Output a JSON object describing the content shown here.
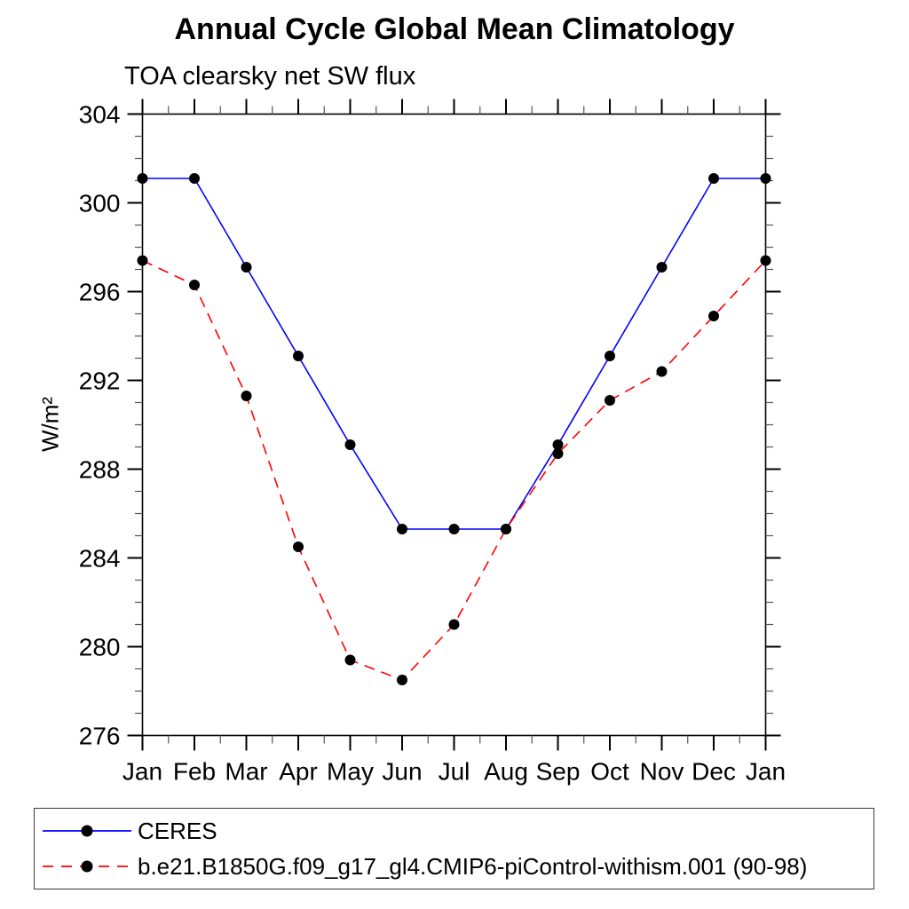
{
  "title": "Annual Cycle Global Mean Climatology",
  "subtitle": "TOA clearsky net SW flux",
  "ylabel": "W/m²",
  "colors": {
    "ceres_line": "#0000ff",
    "model_line": "#ff0000",
    "marker": "#000000",
    "axis": "#000000",
    "minor_tick": "#555555",
    "legend_border": "#3b3b3b"
  },
  "legend": {
    "items": [
      {
        "label": "CERES",
        "line_style": "solid",
        "color": "#0000ff"
      },
      {
        "label": "b.e21.B1850G.f09_g17_gl4.CMIP6-piControl-withism.001 (90-98)",
        "line_style": "dashed",
        "color": "#ff0000"
      }
    ],
    "position": "bottom-box"
  },
  "chart_data": {
    "type": "line",
    "title": "Annual Cycle Global Mean Climatology",
    "subtitle": "TOA clearsky net SW flux",
    "ylabel": "W/m²",
    "categories": [
      "Jan",
      "Feb",
      "Mar",
      "Apr",
      "May",
      "Jun",
      "Jul",
      "Aug",
      "Sep",
      "Oct",
      "Nov",
      "Dec",
      "Jan"
    ],
    "series": [
      {
        "name": "CERES",
        "color": "#0000ff",
        "line": "solid",
        "marker": "filled-circle",
        "values": [
          301.1,
          301.1,
          297.1,
          293.1,
          289.1,
          285.3,
          285.3,
          285.3,
          289.1,
          293.1,
          297.1,
          301.1,
          301.1
        ]
      },
      {
        "name": "b.e21.B1850G.f09_g17_gl4.CMIP6-piControl-withism.001 (90-98)",
        "color": "#ff0000",
        "line": "dashed",
        "marker": "filled-circle",
        "values": [
          297.4,
          296.3,
          291.3,
          284.5,
          279.4,
          278.5,
          281.0,
          285.3,
          288.7,
          291.1,
          292.4,
          294.9,
          297.4
        ]
      }
    ],
    "ylim": [
      276,
      304
    ],
    "ytick_major_step": 4,
    "ytick_minor_step": 1,
    "ytick_labels": [
      "276",
      "280",
      "284",
      "288",
      "292",
      "296",
      "300",
      "304"
    ],
    "xtick_minor_step": 0.5,
    "grid": false,
    "legend_position": "bottom-box"
  }
}
